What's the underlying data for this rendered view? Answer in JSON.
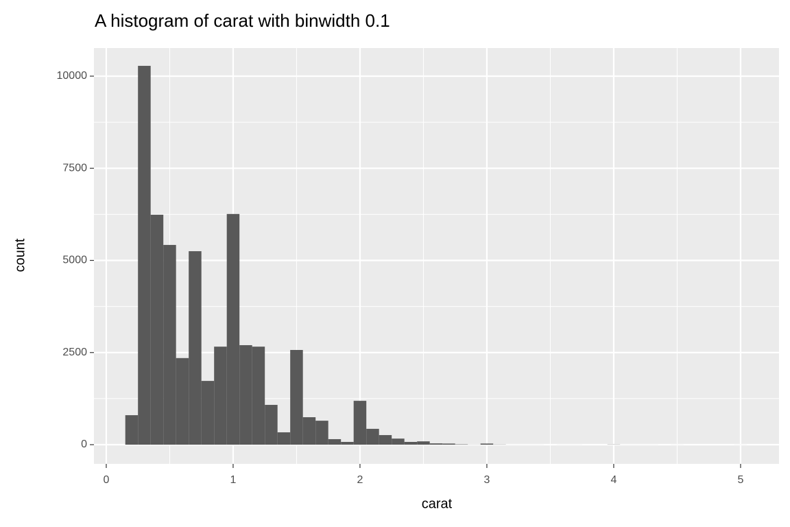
{
  "chart_data": {
    "type": "histogram",
    "title": "A histogram of carat with binwidth 0.1",
    "x_label": "carat",
    "y_label": "count",
    "bins": [
      0.15,
      0.25,
      0.35,
      0.45,
      0.55,
      0.65,
      0.75,
      0.85,
      0.95,
      1.05,
      1.15,
      1.25,
      1.35,
      1.45,
      1.55,
      1.65,
      1.75,
      1.85,
      1.95,
      2.05,
      2.15,
      2.25,
      2.35,
      2.45,
      2.55,
      2.65,
      2.75,
      2.85,
      2.95,
      3.05,
      3.15,
      3.25,
      3.35,
      3.45,
      3.55,
      3.65,
      3.75,
      3.85,
      3.95,
      4.05,
      4.15,
      4.25,
      4.35,
      4.45,
      4.55,
      4.65,
      4.75,
      4.85,
      4.95,
      5.05
    ],
    "values": [
      800,
      10280,
      6240,
      5420,
      2350,
      5250,
      1730,
      2660,
      6260,
      2700,
      2660,
      1080,
      335,
      2570,
      745,
      650,
      150,
      75,
      1190,
      430,
      260,
      165,
      75,
      90,
      35,
      30,
      10,
      3,
      30,
      5,
      1,
      1,
      1,
      0,
      1,
      1,
      0,
      0,
      5,
      1,
      1,
      1,
      0,
      1,
      0,
      0,
      0,
      0,
      1
    ],
    "color": "#595959",
    "xlim": [
      -0.097,
      5.303
    ],
    "ylim": [
      -521,
      10763
    ],
    "xticks": [
      0,
      1,
      2,
      3,
      4,
      5
    ],
    "yticks": [
      0,
      2500,
      5000,
      7500,
      10000
    ],
    "grid": true
  }
}
